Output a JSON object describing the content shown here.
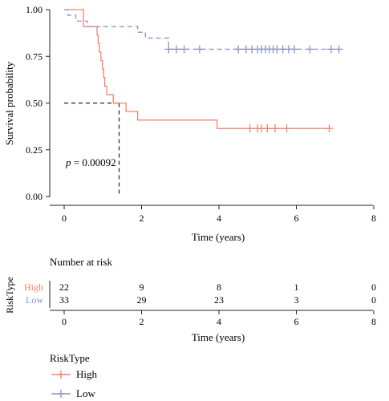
{
  "chart_data": {
    "type": "line",
    "subtype": "kaplan-meier",
    "xlabel": "Time (years)",
    "ylabel": "Survival probability",
    "xlim": [
      0,
      8
    ],
    "ylim": [
      0,
      1
    ],
    "x_ticks": [
      "0",
      "2",
      "4",
      "6",
      "8"
    ],
    "y_ticks": [
      "0.00",
      "0.25",
      "0.50",
      "0.75",
      "1.00"
    ],
    "grid": false,
    "p_label": "p",
    "p_value": " = 0.00092",
    "median_survival": {
      "series": "High",
      "x": 1.42,
      "y": 0.5
    },
    "series": [
      {
        "name": "High",
        "color": "#f4836b",
        "line_style": "solid",
        "steps": [
          [
            0,
            1.0
          ],
          [
            0.5,
            0.909
          ],
          [
            0.85,
            0.864
          ],
          [
            0.88,
            0.818
          ],
          [
            0.91,
            0.773
          ],
          [
            0.95,
            0.727
          ],
          [
            0.99,
            0.682
          ],
          [
            1.02,
            0.636
          ],
          [
            1.05,
            0.591
          ],
          [
            1.1,
            0.545
          ],
          [
            1.27,
            0.5
          ],
          [
            1.45,
            0.5
          ],
          [
            1.6,
            0.455
          ],
          [
            1.9,
            0.409
          ],
          [
            3.95,
            0.364
          ],
          [
            6.85,
            0.364
          ]
        ],
        "censor_times": [
          4.8,
          5.0,
          5.1,
          5.25,
          5.45,
          5.75,
          6.85
        ]
      },
      {
        "name": "Low",
        "color": "#8c96c6",
        "line_style": "dashed",
        "steps": [
          [
            0,
            1.0
          ],
          [
            0.1,
            0.97
          ],
          [
            0.3,
            0.939
          ],
          [
            0.6,
            0.909
          ],
          [
            1.9,
            0.879
          ],
          [
            2.1,
            0.848
          ],
          [
            2.7,
            0.788
          ],
          [
            7.1,
            0.788
          ]
        ],
        "censor_times": [
          2.7,
          2.9,
          3.1,
          3.5,
          4.5,
          4.7,
          4.85,
          5.0,
          5.1,
          5.2,
          5.3,
          5.4,
          5.5,
          5.65,
          5.8,
          5.95,
          6.35,
          6.9,
          7.1
        ]
      }
    ],
    "risk_table": {
      "title": "Number at risk",
      "group_label": "RiskType",
      "times": [
        0,
        2,
        4,
        6,
        8
      ],
      "xlabel": "Time (years)",
      "rows": [
        {
          "name": "High",
          "color": "#f4836b",
          "counts": [
            "22",
            "9",
            "8",
            "1",
            "0"
          ]
        },
        {
          "name": "Low",
          "color": "#8c96c6",
          "counts": [
            "33",
            "29",
            "23",
            "3",
            "0"
          ]
        }
      ]
    },
    "legend": {
      "title": "RiskType",
      "placement": "bottom",
      "entries": [
        {
          "name": "High",
          "color": "#f4836b"
        },
        {
          "name": "Low",
          "color": "#8c96c6"
        }
      ]
    }
  }
}
